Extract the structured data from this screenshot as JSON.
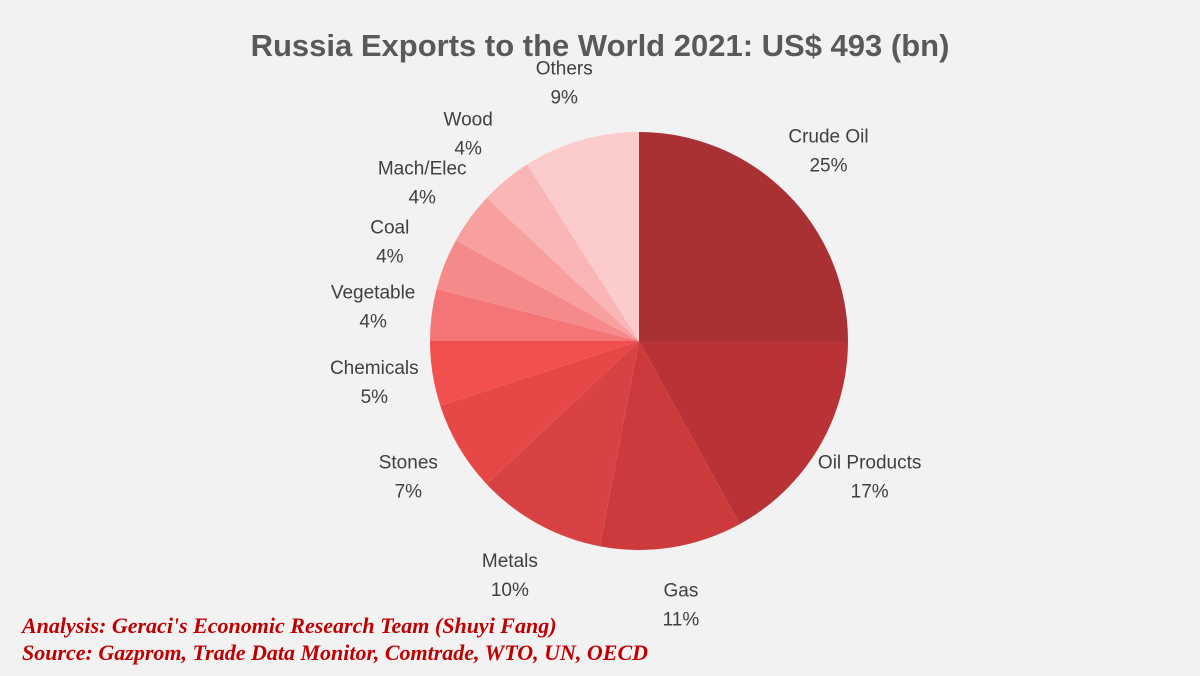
{
  "chart_data": {
    "type": "pie",
    "title": "Russia Exports to the World 2021: US$ 493 (bn)",
    "categories": [
      "Crude Oil",
      "Oil Products",
      "Gas",
      "Metals",
      "Stones",
      "Chemicals",
      "Vegetable",
      "Coal",
      "Mach/Elec",
      "Wood",
      "Others"
    ],
    "values": [
      25,
      17,
      11,
      10,
      7,
      5,
      4,
      4,
      4,
      4,
      9
    ],
    "value_labels": [
      "25%",
      "17%",
      "11%",
      "10%",
      "7%",
      "5%",
      "4%",
      "4%",
      "4%",
      "4%",
      "9%"
    ],
    "colors": [
      "#a93033",
      "#b93236",
      "#cc3a3c",
      "#d94243",
      "#e64848",
      "#f24f4f",
      "#f47575",
      "#f68a8a",
      "#f8a0a0",
      "#fab6b6",
      "#fccbcb"
    ],
    "annotations": [
      "Analysis: Geraci's Economic Research Team (Shuyi Fang)",
      "Source: Gazprom, Trade Data Monitor, Comtrade, WTO, UN, OECD"
    ]
  }
}
